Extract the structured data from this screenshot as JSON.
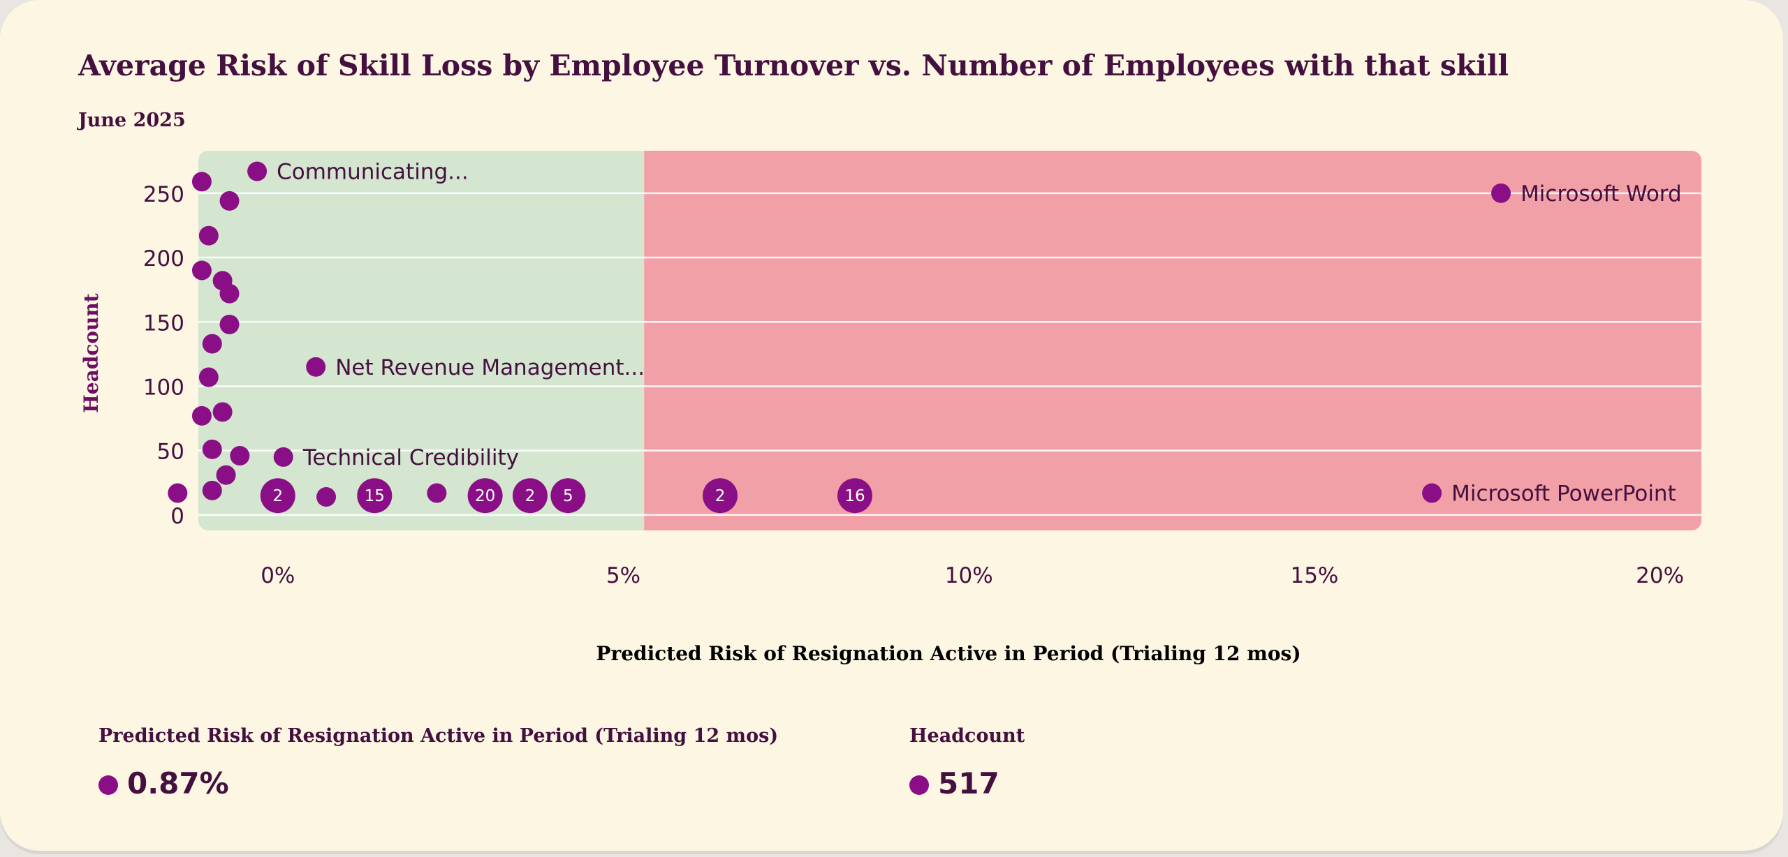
{
  "chart_data": {
    "type": "scatter",
    "title": "Average Risk of Skill Loss by Employee Turnover vs. Number of Employees with that skill",
    "subtitle": "June 2025",
    "xlabel": "Predicted Risk of Resignation Active in Period (Trialing 12 mos)",
    "ylabel": "Headcount",
    "x_unit": "%",
    "xlim": [
      -1.15,
      20.6
    ],
    "ylim": [
      -12,
      283
    ],
    "x_ticks": [
      "0%",
      "5%",
      "10%",
      "15%",
      "20%"
    ],
    "x_tick_values": [
      0,
      5,
      10,
      15,
      20
    ],
    "y_ticks": [
      "0",
      "50",
      "100",
      "150",
      "200",
      "250"
    ],
    "y_tick_values": [
      0,
      50,
      100,
      150,
      200,
      250
    ],
    "grid": "horizontal",
    "zones": [
      {
        "from": -1.15,
        "to": 5.3,
        "color": "#d4e6d0"
      },
      {
        "from": 5.3,
        "to": 20.6,
        "color": "#f2a0a7"
      }
    ],
    "point_color": "#8a0f86",
    "points": [
      {
        "x": -0.3,
        "y": 267,
        "label": "Communicating..."
      },
      {
        "x": -1.1,
        "y": 259
      },
      {
        "x": -0.7,
        "y": 244
      },
      {
        "x": -1.0,
        "y": 217
      },
      {
        "x": -1.1,
        "y": 190
      },
      {
        "x": -0.8,
        "y": 182
      },
      {
        "x": -0.7,
        "y": 172
      },
      {
        "x": -0.7,
        "y": 148
      },
      {
        "x": -0.95,
        "y": 133
      },
      {
        "x": -1.0,
        "y": 107
      },
      {
        "x": 0.55,
        "y": 115,
        "label": "Net Revenue Management..."
      },
      {
        "x": -1.1,
        "y": 77
      },
      {
        "x": -0.8,
        "y": 80
      },
      {
        "x": -0.95,
        "y": 51
      },
      {
        "x": -0.55,
        "y": 46
      },
      {
        "x": 0.08,
        "y": 45,
        "label": "Technical Credibility"
      },
      {
        "x": -0.75,
        "y": 31
      },
      {
        "x": -1.45,
        "y": 17
      },
      {
        "x": -0.95,
        "y": 19
      },
      {
        "x": 0.7,
        "y": 14
      },
      {
        "x": 2.3,
        "y": 17
      },
      {
        "x": 17.7,
        "y": 250,
        "label": "Microsoft Word"
      },
      {
        "x": 16.7,
        "y": 17,
        "label": "Microsoft PowerPoint"
      }
    ],
    "clusters": [
      {
        "x": 0.0,
        "y": 15,
        "count": "2"
      },
      {
        "x": 1.4,
        "y": 15,
        "count": "15"
      },
      {
        "x": 3.0,
        "y": 15,
        "count": "20"
      },
      {
        "x": 3.65,
        "y": 15,
        "count": "2"
      },
      {
        "x": 4.2,
        "y": 15,
        "count": "5"
      },
      {
        "x": 6.4,
        "y": 15,
        "count": "2"
      },
      {
        "x": 8.35,
        "y": 15,
        "count": "16"
      }
    ]
  },
  "summary": {
    "risk_label": "Predicted Risk of Resignation Active in Period (Trialing 12 mos)",
    "risk_value": "0.87%",
    "headcount_label": "Headcount",
    "headcount_value": "517"
  }
}
